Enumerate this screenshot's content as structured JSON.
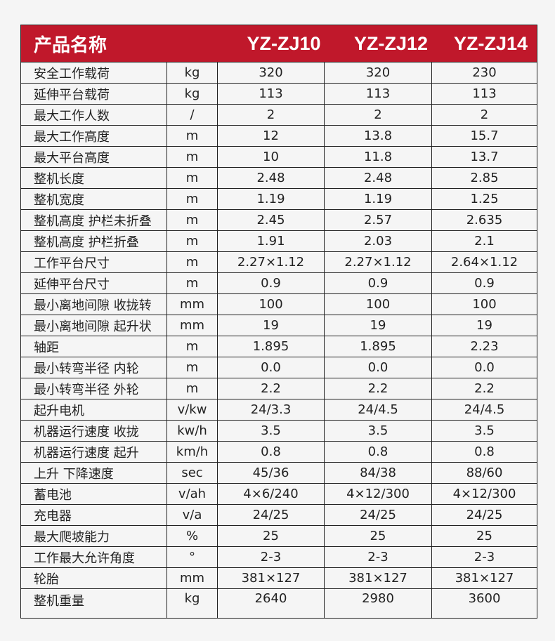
{
  "header": {
    "name": "产品名称",
    "models": [
      "YZ-ZJ10",
      "YZ-ZJ12",
      "YZ-ZJ14"
    ]
  },
  "rows": [
    [
      "安全工作载荷",
      "kg",
      "320",
      "320",
      "230"
    ],
    [
      "延伸平台载荷",
      "kg",
      "113",
      "113",
      "113"
    ],
    [
      "最大工作人数",
      "/",
      "2",
      "2",
      "2"
    ],
    [
      "最大工作高度",
      "m",
      "12",
      "13.8",
      "15.7"
    ],
    [
      "最大平台高度",
      "m",
      "10",
      "11.8",
      "13.7"
    ],
    [
      "整机长度",
      "m",
      "2.48",
      "2.48",
      "2.85"
    ],
    [
      "整机宽度",
      "m",
      "1.19",
      "1.19",
      "1.25"
    ],
    [
      "整机高度 护栏未折叠",
      "m",
      "2.45",
      "2.57",
      "2.635"
    ],
    [
      "整机高度 护栏折叠",
      "m",
      "1.91",
      "2.03",
      "2.1"
    ],
    [
      "工作平台尺寸",
      "m",
      "2.27×1.12",
      "2.27×1.12",
      "2.64×1.12"
    ],
    [
      "延伸平台尺寸",
      "m",
      "0.9",
      "0.9",
      "0.9"
    ],
    [
      "最小离地间隙 收拢转",
      "mm",
      "100",
      "100",
      "100"
    ],
    [
      "最小离地间隙 起升状",
      "mm",
      "19",
      "19",
      "19"
    ],
    [
      "轴距",
      "m",
      "1.895",
      "1.895",
      "2.23"
    ],
    [
      "最小转弯半径 内轮",
      "m",
      "0.0",
      "0.0",
      "0.0"
    ],
    [
      "最小转弯半径 外轮",
      "m",
      "2.2",
      "2.2",
      "2.2"
    ],
    [
      "起升电机",
      "v/kw",
      "24/3.3",
      "24/4.5",
      "24/4.5"
    ],
    [
      "机器运行速度 收拢",
      "kw/h",
      "3.5",
      "3.5",
      "3.5"
    ],
    [
      "机器运行速度 起升",
      "km/h",
      "0.8",
      "0.8",
      "0.8"
    ],
    [
      "上升 下降速度",
      "sec",
      "45/36",
      "84/38",
      "88/60"
    ],
    [
      "蓄电池",
      "v/ah",
      "4×6/240",
      "4×12/300",
      "4×12/300"
    ],
    [
      "充电器",
      "v/a",
      "24/25",
      "24/25",
      "24/25"
    ],
    [
      "最大爬坡能力",
      "%",
      "25",
      "25",
      "25"
    ],
    [
      "工作最大允许角度",
      "°",
      "2-3",
      "2-3",
      "2-3"
    ],
    [
      "轮胎",
      "mm",
      "381×127",
      "381×127",
      "381×127"
    ],
    [
      "整机重量",
      "kg",
      "2640",
      "2980",
      "3600"
    ]
  ],
  "colors": {
    "header_bg": "#c0182b"
  }
}
